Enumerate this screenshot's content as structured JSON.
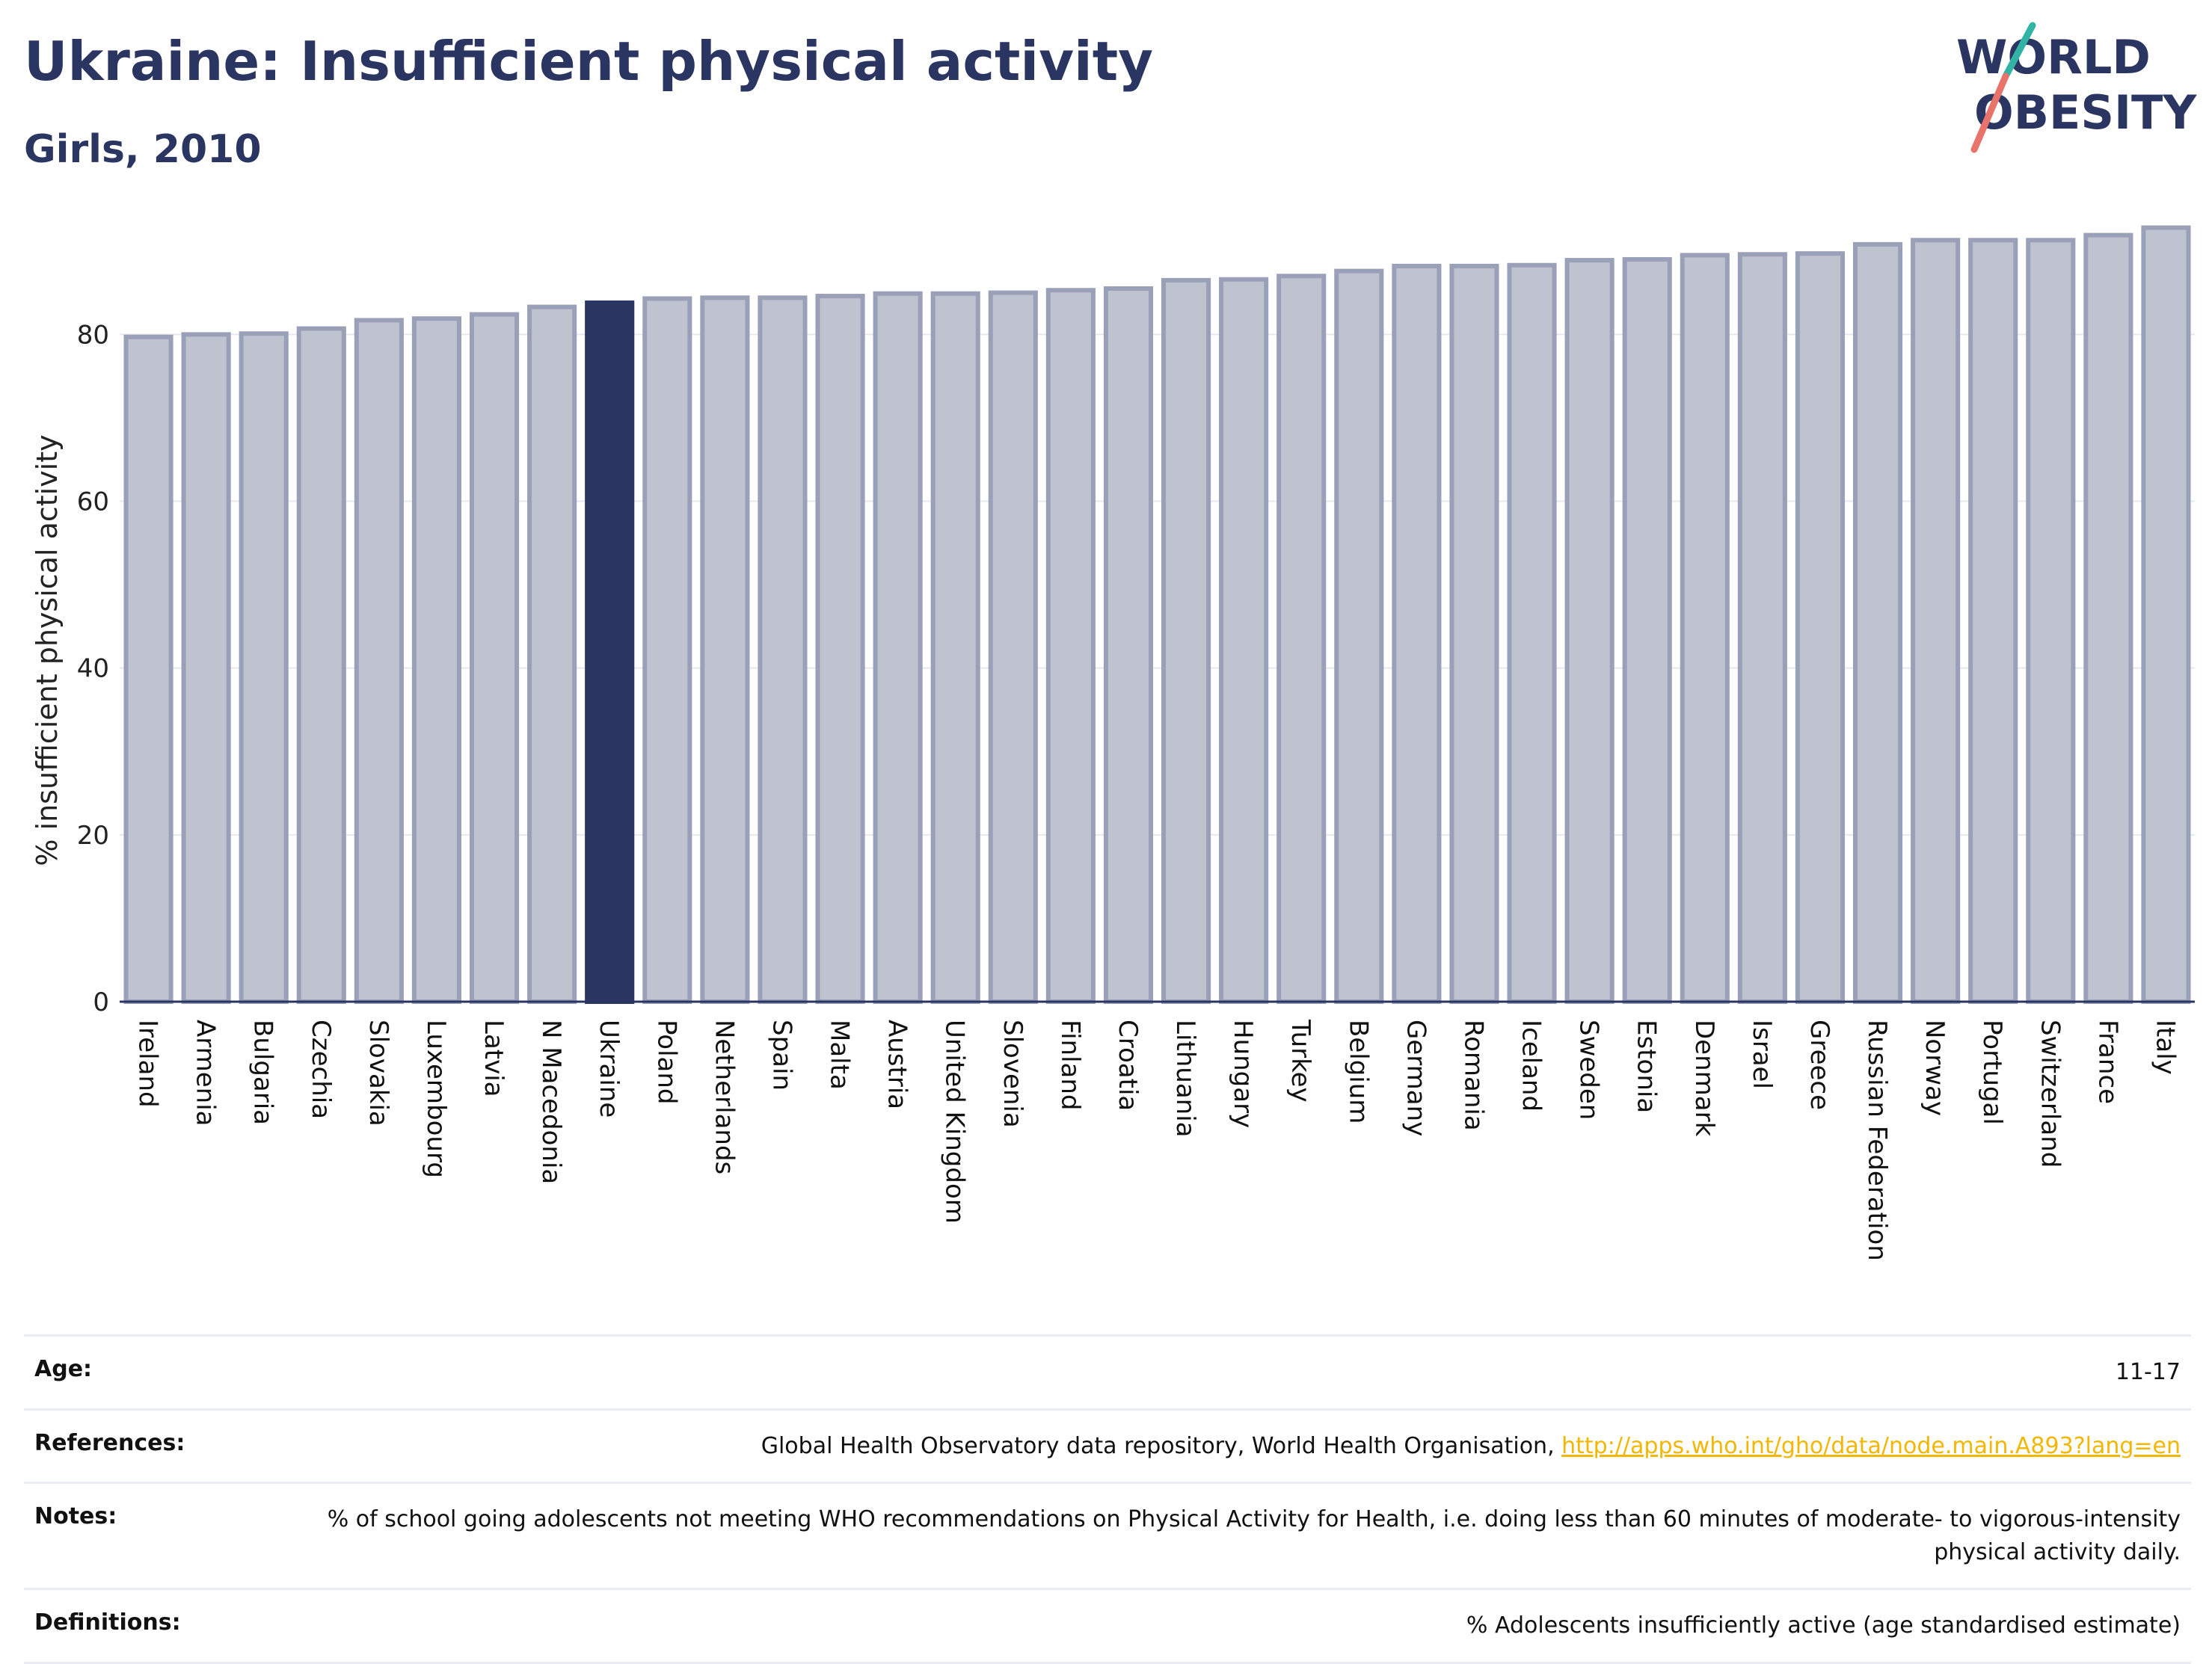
{
  "header": {
    "title": "Ukraine: Insufficient physical activity",
    "subtitle": "Girls, 2010"
  },
  "logo": {
    "line1": "WORLD",
    "line2": "OBESITY",
    "brand_color": "#2b3562",
    "accent_teal": "#33b3a6",
    "accent_coral": "#e8736b"
  },
  "chart_data": {
    "type": "bar",
    "ylabel": "% insufficient physical activity",
    "ylim": [
      0,
      95
    ],
    "yticks": [
      0,
      20,
      40,
      60,
      80
    ],
    "grid": true,
    "highlight": "Ukraine",
    "highlight_color": "#2b3562",
    "bar_color": "#bfc2cf",
    "bar_edge_color": "#9aa0b8",
    "categories": [
      "Ireland",
      "Armenia",
      "Bulgaria",
      "Czechia",
      "Slovakia",
      "Luxembourg",
      "Latvia",
      "N Macedonia",
      "Ukraine",
      "Poland",
      "Netherlands",
      "Spain",
      "Malta",
      "Austria",
      "United Kingdom",
      "Slovenia",
      "Finland",
      "Croatia",
      "Lithuania",
      "Hungary",
      "Turkey",
      "Belgium",
      "Germany",
      "Romania",
      "Iceland",
      "Sweden",
      "Estonia",
      "Denmark",
      "Israel",
      "Greece",
      "Russian Federation",
      "Norway",
      "Portugal",
      "Switzerland",
      "France",
      "Italy"
    ],
    "values": [
      79.7,
      80.0,
      80.1,
      80.7,
      81.7,
      81.9,
      82.4,
      83.3,
      83.8,
      84.3,
      84.4,
      84.4,
      84.6,
      84.9,
      84.9,
      85.0,
      85.3,
      85.5,
      86.5,
      86.6,
      87.0,
      87.6,
      88.2,
      88.2,
      88.3,
      88.9,
      89.0,
      89.5,
      89.6,
      89.7,
      90.8,
      91.3,
      91.3,
      91.3,
      91.9,
      92.8
    ]
  },
  "meta": {
    "age_label": "Age:",
    "age_value": "11-17",
    "references_label": "References:",
    "references_text": "Global Health Observatory data repository, World Health Organisation, ",
    "references_link": "http://apps.who.int/gho/data/node.main.A893?lang=en",
    "notes_label": "Notes:",
    "notes_value": "% of school going adolescents not meeting WHO recommendations on Physical Activity for Health, i.e. doing less than 60 minutes of moderate- to vigorous-intensity physical activity daily.",
    "definitions_label": "Definitions:",
    "definitions_value": "% Adolescents insufficiently active (age standardised estimate)"
  }
}
